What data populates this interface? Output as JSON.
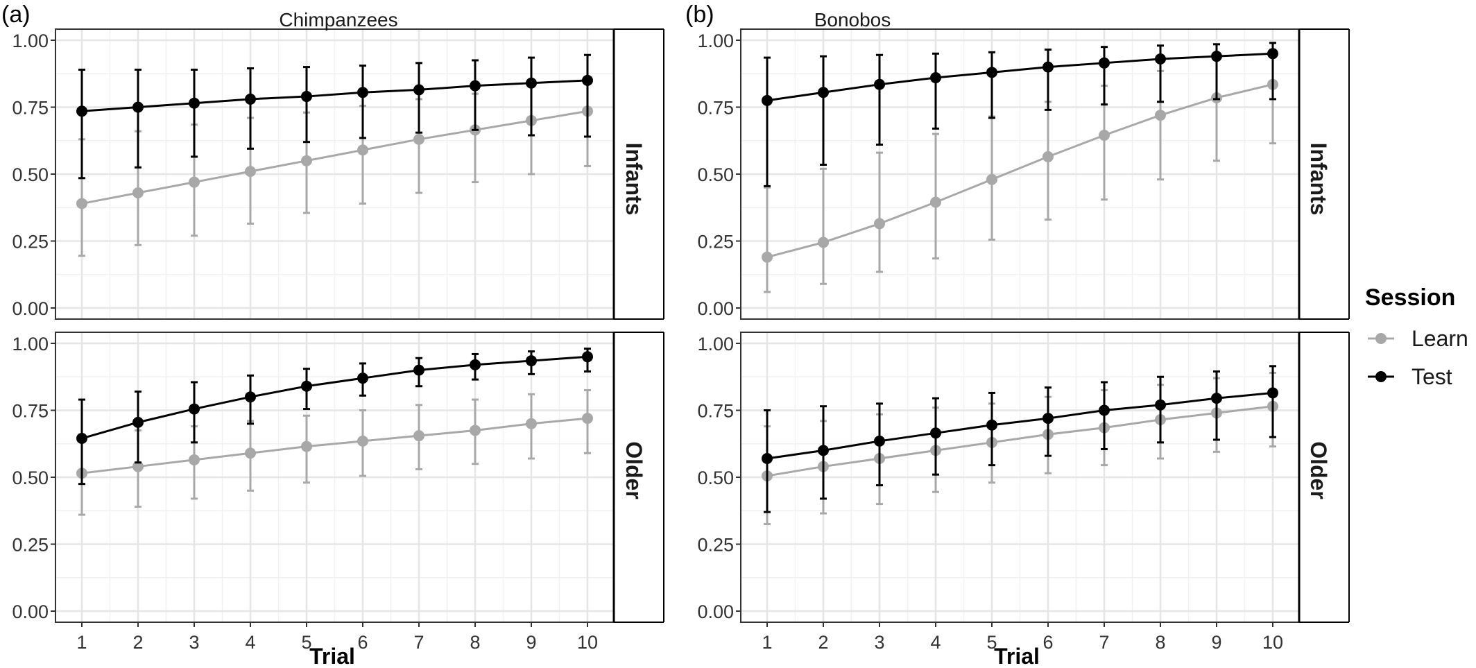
{
  "panel_labels": [
    "(a)",
    "(b)"
  ],
  "strip_labels": {
    "columns": [
      "Chimpanzees",
      "Bonobos"
    ],
    "rows": [
      "Infants",
      "Older"
    ]
  },
  "legend": {
    "title": "Session",
    "items": [
      {
        "label": "Learn",
        "color": "#a8a8a8"
      },
      {
        "label": "Test",
        "color": "#000000"
      }
    ]
  },
  "colors": {
    "learn": "#a8a8a8",
    "test": "#000000",
    "grid": "#e6e6e6"
  },
  "chart_data": {
    "type": "line",
    "xlabel": "Trial",
    "ylabel": "",
    "x": [
      1,
      2,
      3,
      4,
      5,
      6,
      7,
      8,
      9,
      10
    ],
    "xticks": [
      "1",
      "2",
      "3",
      "4",
      "5",
      "6",
      "7",
      "8",
      "9",
      "10"
    ],
    "ylim": [
      0,
      1
    ],
    "yticks": [
      "0.00",
      "0.25",
      "0.50",
      "0.75",
      "1.00"
    ],
    "grid": true,
    "legend_position": "right",
    "panels": [
      {
        "column": "Chimpanzees",
        "row": "Infants",
        "series": [
          {
            "name": "Learn",
            "y": [
              0.39,
              0.43,
              0.47,
              0.51,
              0.55,
              0.59,
              0.63,
              0.665,
              0.7,
              0.735
            ],
            "lo": [
              0.195,
              0.235,
              0.27,
              0.315,
              0.355,
              0.39,
              0.43,
              0.47,
              0.5,
              0.53
            ],
            "hi": [
              0.63,
              0.66,
              0.685,
              0.71,
              0.73,
              0.755,
              0.78,
              0.8,
              0.83,
              0.86
            ]
          },
          {
            "name": "Test",
            "y": [
              0.735,
              0.75,
              0.765,
              0.78,
              0.79,
              0.805,
              0.815,
              0.83,
              0.84,
              0.85
            ],
            "lo": [
              0.485,
              0.525,
              0.565,
              0.595,
              0.62,
              0.635,
              0.655,
              0.665,
              0.645,
              0.64
            ],
            "hi": [
              0.89,
              0.89,
              0.89,
              0.895,
              0.9,
              0.905,
              0.915,
              0.925,
              0.935,
              0.945
            ]
          }
        ]
      },
      {
        "column": "Bonobos",
        "row": "Infants",
        "series": [
          {
            "name": "Learn",
            "y": [
              0.19,
              0.245,
              0.315,
              0.395,
              0.48,
              0.565,
              0.645,
              0.72,
              0.785,
              0.835
            ],
            "lo": [
              0.06,
              0.09,
              0.135,
              0.185,
              0.255,
              0.33,
              0.405,
              0.48,
              0.55,
              0.615
            ],
            "hi": [
              0.45,
              0.52,
              0.58,
              0.65,
              0.715,
              0.77,
              0.83,
              0.885,
              0.93,
              0.965
            ]
          },
          {
            "name": "Test",
            "y": [
              0.775,
              0.805,
              0.835,
              0.86,
              0.88,
              0.9,
              0.915,
              0.93,
              0.94,
              0.95
            ],
            "lo": [
              0.455,
              0.535,
              0.61,
              0.67,
              0.71,
              0.74,
              0.76,
              0.77,
              0.78,
              0.78
            ],
            "hi": [
              0.935,
              0.94,
              0.945,
              0.95,
              0.955,
              0.965,
              0.975,
              0.98,
              0.985,
              0.99
            ]
          }
        ]
      },
      {
        "column": "Chimpanzees",
        "row": "Older",
        "series": [
          {
            "name": "Learn",
            "y": [
              0.515,
              0.54,
              0.565,
              0.59,
              0.615,
              0.635,
              0.655,
              0.675,
              0.7,
              0.72
            ],
            "lo": [
              0.36,
              0.39,
              0.42,
              0.45,
              0.48,
              0.505,
              0.53,
              0.55,
              0.57,
              0.59
            ],
            "hi": [
              0.66,
              0.675,
              0.69,
              0.71,
              0.73,
              0.75,
              0.77,
              0.79,
              0.81,
              0.825
            ]
          },
          {
            "name": "Test",
            "y": [
              0.645,
              0.705,
              0.755,
              0.8,
              0.84,
              0.87,
              0.9,
              0.92,
              0.935,
              0.95
            ],
            "lo": [
              0.475,
              0.555,
              0.63,
              0.7,
              0.755,
              0.805,
              0.84,
              0.865,
              0.885,
              0.895
            ],
            "hi": [
              0.79,
              0.82,
              0.855,
              0.88,
              0.905,
              0.925,
              0.945,
              0.96,
              0.97,
              0.98
            ]
          }
        ]
      },
      {
        "column": "Bonobos",
        "row": "Older",
        "series": [
          {
            "name": "Learn",
            "y": [
              0.505,
              0.54,
              0.57,
              0.6,
              0.63,
              0.66,
              0.685,
              0.715,
              0.74,
              0.765
            ],
            "lo": [
              0.325,
              0.365,
              0.4,
              0.445,
              0.48,
              0.515,
              0.545,
              0.57,
              0.595,
              0.615
            ],
            "hi": [
              0.69,
              0.71,
              0.735,
              0.76,
              0.775,
              0.8,
              0.825,
              0.845,
              0.87,
              0.89
            ]
          },
          {
            "name": "Test",
            "y": [
              0.57,
              0.6,
              0.635,
              0.665,
              0.695,
              0.72,
              0.75,
              0.77,
              0.795,
              0.815
            ],
            "lo": [
              0.37,
              0.42,
              0.47,
              0.51,
              0.545,
              0.58,
              0.605,
              0.63,
              0.64,
              0.65
            ],
            "hi": [
              0.75,
              0.765,
              0.775,
              0.795,
              0.815,
              0.835,
              0.855,
              0.875,
              0.895,
              0.915
            ]
          }
        ]
      }
    ]
  }
}
